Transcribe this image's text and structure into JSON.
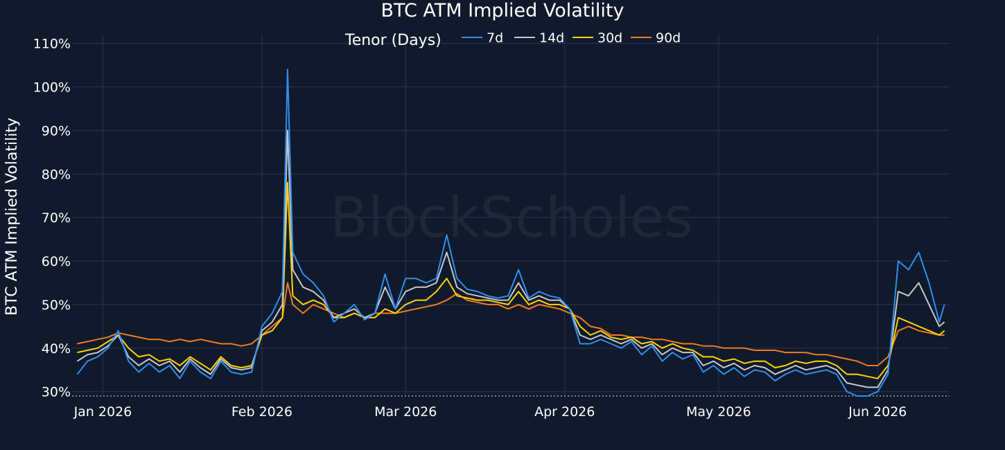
{
  "chart_data": {
    "type": "line",
    "title": "BTC ATM Implied Volatility",
    "ylabel": "BTC ATM Implied Volatility",
    "xlabel": "",
    "legend_title": "Tenor (Days)",
    "legend_position": "top-center",
    "watermark": "BlockScholes",
    "grid": true,
    "ylim": [
      0.29,
      1.12
    ],
    "xlim": [
      "2025-12-26",
      "2026-06-15"
    ],
    "yticks": [
      0.3,
      0.4,
      0.5,
      0.6,
      0.7,
      0.8,
      0.9,
      1.0,
      1.1
    ],
    "ytick_labels": [
      "30%",
      "40%",
      "50%",
      "60%",
      "70%",
      "80%",
      "90%",
      "100%",
      "110%"
    ],
    "xticks": [
      "2026-01-01",
      "2026-02-01",
      "2026-03-01",
      "2026-04-01",
      "2026-05-01",
      "2026-06-01"
    ],
    "xtick_labels": [
      "Jan 2026",
      "Feb 2026",
      "Mar 2026",
      "Apr 2026",
      "May 2026",
      "Jun 2026"
    ],
    "x": [
      "2025-12-27",
      "2025-12-29",
      "2025-12-31",
      "2026-01-02",
      "2026-01-04",
      "2026-01-06",
      "2026-01-08",
      "2026-01-10",
      "2026-01-12",
      "2026-01-14",
      "2026-01-16",
      "2026-01-18",
      "2026-01-20",
      "2026-01-22",
      "2026-01-24",
      "2026-01-26",
      "2026-01-28",
      "2026-01-30",
      "2026-02-01",
      "2026-02-03",
      "2026-02-05",
      "2026-02-06",
      "2026-02-07",
      "2026-02-09",
      "2026-02-11",
      "2026-02-13",
      "2026-02-15",
      "2026-02-17",
      "2026-02-19",
      "2026-02-21",
      "2026-02-23",
      "2026-02-25",
      "2026-02-27",
      "2026-03-01",
      "2026-03-03",
      "2026-03-05",
      "2026-03-07",
      "2026-03-09",
      "2026-03-11",
      "2026-03-13",
      "2026-03-15",
      "2026-03-17",
      "2026-03-19",
      "2026-03-21",
      "2026-03-23",
      "2026-03-25",
      "2026-03-27",
      "2026-03-29",
      "2026-03-31",
      "2026-04-02",
      "2026-04-04",
      "2026-04-06",
      "2026-04-08",
      "2026-04-10",
      "2026-04-12",
      "2026-04-14",
      "2026-04-16",
      "2026-04-18",
      "2026-04-20",
      "2026-04-22",
      "2026-04-24",
      "2026-04-26",
      "2026-04-28",
      "2026-04-30",
      "2026-05-02",
      "2026-05-04",
      "2026-05-06",
      "2026-05-08",
      "2026-05-10",
      "2026-05-12",
      "2026-05-14",
      "2026-05-16",
      "2026-05-18",
      "2026-05-20",
      "2026-05-22",
      "2026-05-24",
      "2026-05-26",
      "2026-05-28",
      "2026-05-30",
      "2026-06-01",
      "2026-06-03",
      "2026-06-05",
      "2026-06-07",
      "2026-06-09",
      "2026-06-11",
      "2026-06-13",
      "2026-06-14"
    ],
    "series": [
      {
        "name": "90d",
        "color": "#f47a1f",
        "values": [
          0.41,
          0.415,
          0.42,
          0.425,
          0.435,
          0.43,
          0.425,
          0.42,
          0.42,
          0.415,
          0.42,
          0.415,
          0.42,
          0.415,
          0.41,
          0.41,
          0.405,
          0.41,
          0.43,
          0.45,
          0.47,
          0.55,
          0.5,
          0.48,
          0.5,
          0.49,
          0.48,
          0.47,
          0.48,
          0.47,
          0.48,
          0.48,
          0.48,
          0.485,
          0.49,
          0.495,
          0.5,
          0.51,
          0.525,
          0.51,
          0.505,
          0.5,
          0.5,
          0.49,
          0.5,
          0.49,
          0.5,
          0.495,
          0.49,
          0.48,
          0.47,
          0.45,
          0.445,
          0.43,
          0.43,
          0.425,
          0.425,
          0.42,
          0.42,
          0.415,
          0.41,
          0.41,
          0.405,
          0.405,
          0.4,
          0.4,
          0.4,
          0.395,
          0.395,
          0.395,
          0.39,
          0.39,
          0.39,
          0.385,
          0.385,
          0.38,
          0.375,
          0.37,
          0.36,
          0.36,
          0.38,
          0.44,
          0.45,
          0.44,
          0.435,
          0.43,
          0.43
        ]
      },
      {
        "name": "30d",
        "color": "#ffd500",
        "values": [
          0.39,
          0.395,
          0.4,
          0.415,
          0.43,
          0.4,
          0.38,
          0.385,
          0.37,
          0.375,
          0.36,
          0.38,
          0.365,
          0.35,
          0.38,
          0.36,
          0.355,
          0.36,
          0.43,
          0.44,
          0.47,
          0.78,
          0.52,
          0.5,
          0.51,
          0.5,
          0.47,
          0.47,
          0.48,
          0.47,
          0.47,
          0.49,
          0.48,
          0.5,
          0.51,
          0.51,
          0.53,
          0.56,
          0.52,
          0.515,
          0.51,
          0.51,
          0.505,
          0.5,
          0.53,
          0.5,
          0.51,
          0.5,
          0.5,
          0.49,
          0.45,
          0.43,
          0.44,
          0.425,
          0.42,
          0.425,
          0.41,
          0.415,
          0.4,
          0.41,
          0.4,
          0.395,
          0.38,
          0.38,
          0.37,
          0.375,
          0.365,
          0.37,
          0.37,
          0.355,
          0.36,
          0.37,
          0.365,
          0.37,
          0.37,
          0.36,
          0.34,
          0.34,
          0.335,
          0.33,
          0.36,
          0.47,
          0.46,
          0.45,
          0.44,
          0.43,
          0.44
        ]
      },
      {
        "name": "14d",
        "color": "#c9c9c9",
        "values": [
          0.37,
          0.385,
          0.39,
          0.405,
          0.43,
          0.38,
          0.36,
          0.375,
          0.36,
          0.37,
          0.345,
          0.375,
          0.355,
          0.34,
          0.375,
          0.355,
          0.35,
          0.355,
          0.44,
          0.46,
          0.5,
          0.9,
          0.58,
          0.54,
          0.53,
          0.51,
          0.47,
          0.48,
          0.49,
          0.47,
          0.48,
          0.54,
          0.49,
          0.53,
          0.54,
          0.54,
          0.55,
          0.62,
          0.54,
          0.525,
          0.52,
          0.515,
          0.51,
          0.51,
          0.55,
          0.51,
          0.52,
          0.51,
          0.51,
          0.49,
          0.43,
          0.42,
          0.43,
          0.42,
          0.41,
          0.42,
          0.4,
          0.41,
          0.385,
          0.4,
          0.39,
          0.39,
          0.36,
          0.37,
          0.355,
          0.365,
          0.35,
          0.36,
          0.355,
          0.34,
          0.35,
          0.36,
          0.35,
          0.355,
          0.36,
          0.35,
          0.32,
          0.315,
          0.31,
          0.31,
          0.35,
          0.53,
          0.52,
          0.55,
          0.5,
          0.45,
          0.46
        ]
      },
      {
        "name": "7d",
        "color": "#2f8ff0",
        "values": [
          0.34,
          0.37,
          0.38,
          0.4,
          0.44,
          0.37,
          0.345,
          0.365,
          0.345,
          0.36,
          0.33,
          0.37,
          0.345,
          0.33,
          0.37,
          0.345,
          0.34,
          0.345,
          0.45,
          0.48,
          0.53,
          1.04,
          0.62,
          0.57,
          0.55,
          0.52,
          0.46,
          0.48,
          0.5,
          0.465,
          0.48,
          0.57,
          0.49,
          0.56,
          0.56,
          0.55,
          0.56,
          0.66,
          0.56,
          0.535,
          0.53,
          0.52,
          0.515,
          0.52,
          0.58,
          0.515,
          0.53,
          0.52,
          0.515,
          0.49,
          0.41,
          0.41,
          0.42,
          0.41,
          0.4,
          0.415,
          0.385,
          0.405,
          0.37,
          0.39,
          0.375,
          0.385,
          0.345,
          0.36,
          0.34,
          0.355,
          0.335,
          0.35,
          0.345,
          0.325,
          0.34,
          0.35,
          0.34,
          0.345,
          0.35,
          0.34,
          0.3,
          0.29,
          0.29,
          0.3,
          0.34,
          0.6,
          0.58,
          0.62,
          0.55,
          0.46,
          0.5
        ]
      }
    ]
  }
}
